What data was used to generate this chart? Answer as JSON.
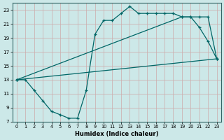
{
  "xlabel": "Humidex (Indice chaleur)",
  "bg_color": "#cce8e8",
  "grid_color": "#aacccc",
  "line_color": "#006666",
  "xlim": [
    -0.5,
    23.5
  ],
  "ylim": [
    7,
    24
  ],
  "xticks": [
    0,
    1,
    2,
    3,
    4,
    5,
    6,
    7,
    8,
    9,
    10,
    11,
    12,
    13,
    14,
    15,
    16,
    17,
    18,
    19,
    20,
    21,
    22,
    23
  ],
  "yticks": [
    7,
    9,
    11,
    13,
    15,
    17,
    19,
    21,
    23
  ],
  "line1_x": [
    0,
    1,
    2,
    3,
    4,
    5,
    6,
    7,
    8,
    9,
    10,
    11,
    12,
    13,
    14,
    15,
    16,
    17,
    18,
    19,
    20,
    21,
    22,
    23
  ],
  "line1_y": [
    13,
    13,
    11.5,
    10,
    8.5,
    8,
    7.5,
    7.5,
    11.5,
    19.5,
    21.5,
    21.5,
    22.5,
    23.5,
    22.5,
    22.5,
    22.5,
    22.5,
    22.5,
    22,
    22,
    20.5,
    18.5,
    16
  ],
  "line2_x": [
    0,
    19,
    20,
    21,
    22,
    23
  ],
  "line2_y": [
    13,
    22,
    22,
    22,
    22,
    16
  ],
  "line3_x": [
    0,
    23
  ],
  "line3_y": [
    13,
    16
  ]
}
